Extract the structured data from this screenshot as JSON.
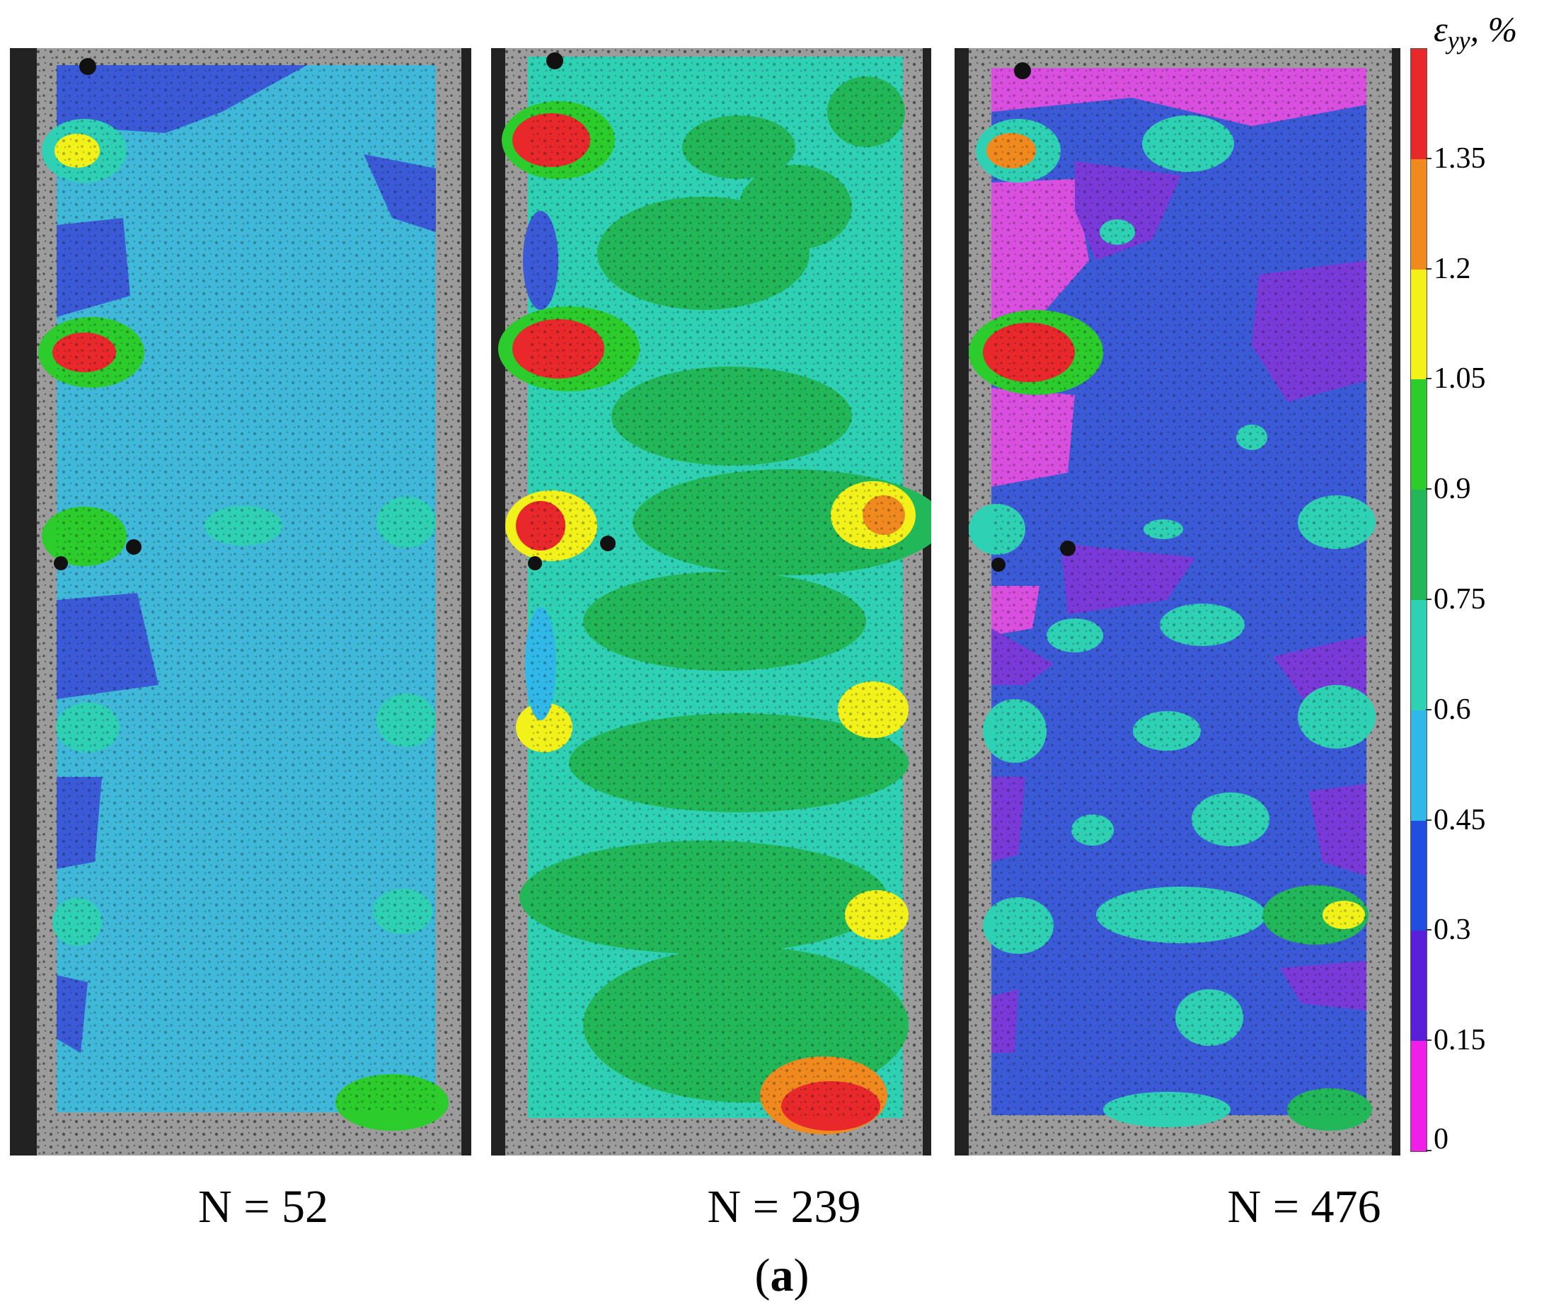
{
  "figure": {
    "panels": [
      {
        "label": "N = 52",
        "dominant_strain": "0.45–0.6",
        "dominant_color": "#3fb8d9"
      },
      {
        "label": "N = 239",
        "dominant_strain": "0.75–1.05",
        "dominant_color": "#2fc07a"
      },
      {
        "label": "N = 476",
        "dominant_strain": "0.3–0.45",
        "dominant_color": "#3b5ad8"
      }
    ],
    "caption_letter": "a",
    "caption_open": "(",
    "caption_close": ")"
  },
  "colorbar": {
    "title_symbol": "ε",
    "title_subscript": "yy",
    "title_unit": ", %",
    "ticks": [
      "1.35",
      "1.2",
      "1.05",
      "0.9",
      "0.75",
      "0.6",
      "0.45",
      "0.3",
      "0.15",
      "0"
    ],
    "bands": [
      {
        "from": 1.35,
        "to": 1.5,
        "color": "#e8282a"
      },
      {
        "from": 1.2,
        "to": 1.35,
        "color": "#f08a1e"
      },
      {
        "from": 1.05,
        "to": 1.2,
        "color": "#f2f21a"
      },
      {
        "from": 0.9,
        "to": 1.05,
        "color": "#2bcc2b"
      },
      {
        "from": 0.75,
        "to": 0.9,
        "color": "#22b85a"
      },
      {
        "from": 0.6,
        "to": 0.75,
        "color": "#2fd1b4"
      },
      {
        "from": 0.45,
        "to": 0.6,
        "color": "#2fb8e8"
      },
      {
        "from": 0.3,
        "to": 0.45,
        "color": "#1f4ee0"
      },
      {
        "from": 0.15,
        "to": 0.3,
        "color": "#5a1fd8"
      },
      {
        "from": 0,
        "to": 0.15,
        "color": "#f01fe8"
      }
    ]
  }
}
